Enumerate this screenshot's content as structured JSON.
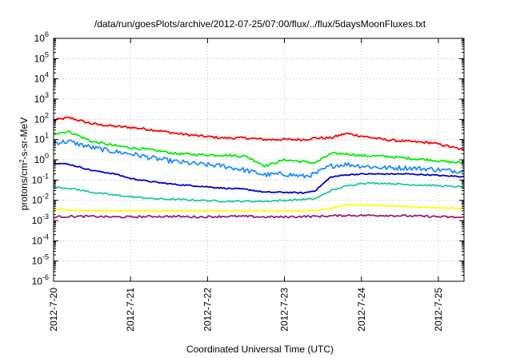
{
  "chart_data": {
    "type": "line",
    "title": "/data/run/goesPlots/archive/2012-07-25/07:00/flux/../flux/5daysMoonFluxes.txt",
    "xlabel": "Coordinated Universal Time (UTC)",
    "ylabel": {
      "base": "protons/cm",
      "sup": "2",
      "rest": "-s-sr-MeV"
    },
    "yscale": "log",
    "grid": true,
    "xlim": [
      "2012-07-20T00:00",
      "2012-07-25T08:00"
    ],
    "ylim_exp": [
      -6,
      6
    ],
    "xticks": [
      "2012-7-20",
      "2012-7-21",
      "2012-7-22",
      "2012-7-23",
      "2012-7-24",
      "2012-7-25"
    ],
    "yticks": [
      {
        "base": "10",
        "exp": "6"
      },
      {
        "base": "10",
        "exp": "5"
      },
      {
        "base": "10",
        "exp": "4"
      },
      {
        "base": "10",
        "exp": "3"
      },
      {
        "base": "10",
        "exp": "2"
      },
      {
        "base": "10",
        "exp": "1"
      },
      {
        "base": "10",
        "exp": "0"
      },
      {
        "base": "10",
        "exp": "-1"
      },
      {
        "base": "10",
        "exp": "-2"
      },
      {
        "base": "10",
        "exp": "-3"
      },
      {
        "base": "10",
        "exp": "-4"
      },
      {
        "base": "10",
        "exp": "-5"
      },
      {
        "base": "10",
        "exp": "-6"
      }
    ],
    "x_days": [
      0.0,
      0.2,
      0.5,
      0.8,
      1.0,
      1.3,
      1.6,
      1.9,
      2.2,
      2.5,
      2.75,
      3.0,
      3.25,
      3.4,
      3.6,
      3.8,
      4.0,
      4.3,
      4.6,
      4.9,
      5.1,
      5.33
    ],
    "series": [
      {
        "color": "#ff0000",
        "noise": 0.06,
        "values": [
          90,
          120,
          60,
          45,
          40,
          30,
          20,
          15,
          12,
          12,
          10,
          10,
          10,
          12,
          12,
          20,
          15,
          10,
          8,
          7,
          5,
          3
        ]
      },
      {
        "color": "#00ee00",
        "noise": 0.06,
        "values": [
          20,
          25,
          8,
          5,
          4,
          3,
          2,
          1.8,
          1.7,
          1.5,
          0.5,
          1.0,
          0.8,
          0.7,
          2.0,
          2.0,
          1.6,
          1.5,
          1.2,
          1.0,
          0.8,
          0.7
        ]
      },
      {
        "color": "#1e8cff",
        "noise": 0.12,
        "values": [
          7,
          8,
          4,
          2.5,
          2,
          1.2,
          0.8,
          0.6,
          0.5,
          0.3,
          0.18,
          0.2,
          0.15,
          0.2,
          0.5,
          0.6,
          0.5,
          0.4,
          0.4,
          0.35,
          0.3,
          0.28
        ]
      },
      {
        "color": "#0000cc",
        "noise": 0.03,
        "values": [
          0.7,
          0.6,
          0.3,
          0.2,
          0.12,
          0.08,
          0.06,
          0.05,
          0.04,
          0.035,
          0.025,
          0.025,
          0.023,
          0.03,
          0.14,
          0.18,
          0.2,
          0.2,
          0.2,
          0.18,
          0.16,
          0.15
        ]
      },
      {
        "color": "#20c8a0",
        "noise": 0.04,
        "values": [
          0.045,
          0.04,
          0.025,
          0.018,
          0.015,
          0.012,
          0.011,
          0.01,
          0.009,
          0.009,
          0.009,
          0.01,
          0.011,
          0.012,
          0.03,
          0.05,
          0.07,
          0.07,
          0.06,
          0.055,
          0.05,
          0.045
        ]
      },
      {
        "color": "#ffff00",
        "noise": 0.02,
        "values": [
          0.0035,
          0.0033,
          0.003,
          0.003,
          0.003,
          0.003,
          0.003,
          0.003,
          0.003,
          0.003,
          0.003,
          0.003,
          0.003,
          0.0032,
          0.004,
          0.006,
          0.006,
          0.0055,
          0.005,
          0.0045,
          0.0042,
          0.004
        ]
      },
      {
        "color": "#9b1e6e",
        "noise": 0.05,
        "values": [
          0.0015,
          0.0016,
          0.0016,
          0.0015,
          0.0015,
          0.0016,
          0.0016,
          0.0015,
          0.0016,
          0.0016,
          0.0015,
          0.0015,
          0.0016,
          0.0016,
          0.0017,
          0.0018,
          0.0018,
          0.0018,
          0.0017,
          0.0016,
          0.0015,
          0.0014
        ]
      }
    ]
  }
}
